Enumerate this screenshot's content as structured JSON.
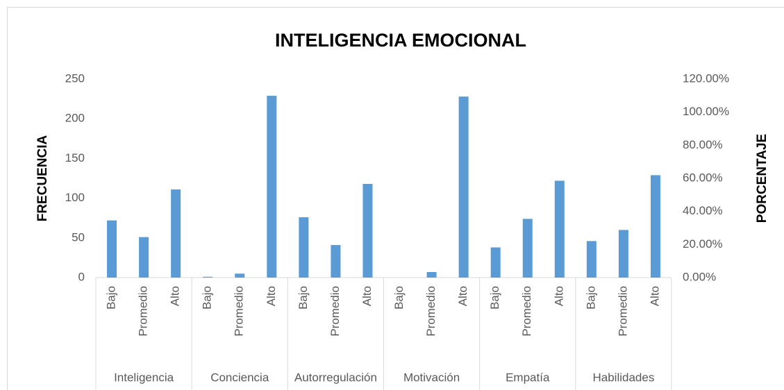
{
  "chart_data": {
    "type": "bar",
    "title": "INTELIGENCIA EMOCIONAL",
    "y_label": "FRECUENCIA",
    "y2_label": "PORCENTAJE",
    "groups": [
      "Inteligencia",
      "Conciencia",
      "Autorregulación",
      "Motivación",
      "Empatía",
      "Habilidades"
    ],
    "categories": [
      "Bajo",
      "Promedio",
      "Alto",
      "Bajo",
      "Promedio",
      "Alto",
      "Bajo",
      "Promedio",
      "Alto",
      "Bajo",
      "Promedio",
      "Alto",
      "Bajo",
      "Promedio",
      "Alto",
      "Bajo",
      "Promedio",
      "Alto"
    ],
    "values": [
      72,
      51,
      111,
      1,
      5,
      229,
      76,
      41,
      118,
      0,
      7,
      228,
      38,
      74,
      122,
      46,
      60,
      129
    ],
    "color": "#5b9bd5",
    "ylim": [
      0,
      250
    ],
    "yticks": [
      0,
      50,
      100,
      150,
      200,
      250
    ],
    "y2lim": [
      0,
      120
    ],
    "y2ticks": [
      {
        "value": 0,
        "label": "0.00%"
      },
      {
        "value": 20,
        "label": "20.00%"
      },
      {
        "value": 40,
        "label": "40.00%"
      },
      {
        "value": 60,
        "label": "60.00%"
      },
      {
        "value": 80,
        "label": "80.00%"
      },
      {
        "value": 100,
        "label": "100.00%"
      },
      {
        "value": 120,
        "label": "120.00%"
      }
    ],
    "grid": false
  }
}
